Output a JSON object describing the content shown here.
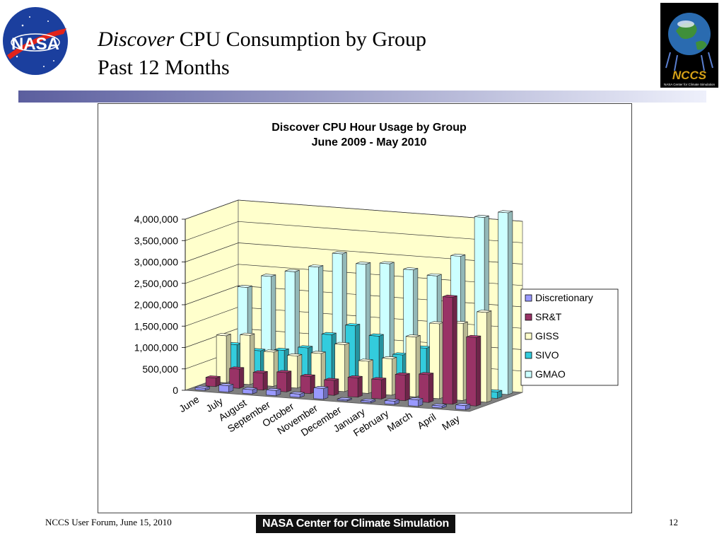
{
  "slide": {
    "title_italic": "Discover",
    "title_rest": " CPU Consumption by Group",
    "subtitle": "Past 12 Months",
    "footer_left": "NCCS User Forum, June 15, 2010",
    "footer_center": "NASA Center for Climate Simulation",
    "page_number": "12",
    "logo_left_text": "NASA",
    "logo_right_text": "NCCS",
    "logo_right_caption": "NASA Center for Climate Simulation"
  },
  "colors": {
    "band_start": "#5b5e9e",
    "band_end": "#eef0fb",
    "wall": "#ffffcc",
    "floor": "#808080",
    "Discretionary": "#9999ff",
    "SR&T": "#993366",
    "GISS": "#ffffcc",
    "SIVO": "#33ccdd",
    "GMAO": "#ccffff"
  },
  "chart_data": {
    "type": "bar",
    "subtype": "3d-clustered",
    "title": "Discover CPU Hour Usage by Group",
    "subtitle": "June 2009 - May 2010",
    "categories": [
      "June",
      "July",
      "August",
      "September",
      "October",
      "November",
      "December",
      "January",
      "February",
      "March",
      "April",
      "May"
    ],
    "ylim": [
      0,
      4000000
    ],
    "yticks": [
      "0",
      "500,000",
      "1,000,000",
      "1,500,000",
      "2,000,000",
      "2,500,000",
      "3,000,000",
      "3,500,000",
      "4,000,000"
    ],
    "grid": true,
    "legend_position": "right",
    "series": [
      {
        "name": "Discretionary",
        "values": [
          50000,
          150000,
          100000,
          120000,
          80000,
          250000,
          30000,
          40000,
          80000,
          150000,
          50000,
          100000
        ]
      },
      {
        "name": "SR&T",
        "values": [
          200000,
          450000,
          400000,
          450000,
          400000,
          350000,
          450000,
          450000,
          600000,
          650000,
          2500000,
          1600000
        ]
      },
      {
        "name": "GISS",
        "values": [
          1100000,
          1150000,
          800000,
          750000,
          850000,
          1100000,
          750000,
          850000,
          1400000,
          1750000,
          1800000,
          2100000
        ]
      },
      {
        "name": "SIVO",
        "values": [
          800000,
          700000,
          750000,
          850000,
          1200000,
          1450000,
          1250000,
          850000,
          1050000,
          1100000,
          200000,
          150000
        ]
      },
      {
        "name": "GMAO",
        "values": [
          2050000,
          2350000,
          2500000,
          2650000,
          3000000,
          2800000,
          2850000,
          2750000,
          2650000,
          3150000,
          4100000,
          4250000
        ]
      }
    ]
  }
}
